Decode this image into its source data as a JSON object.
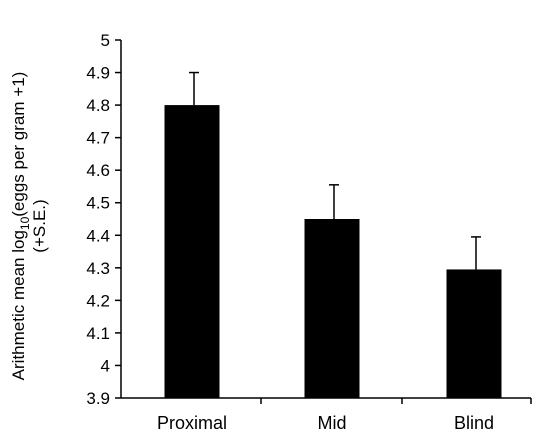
{
  "chart_data": {
    "type": "bar",
    "categories": [
      "Proximal",
      "Mid",
      "Blind"
    ],
    "values": [
      4.8,
      4.45,
      4.295
    ],
    "errors": [
      0.1,
      0.105,
      0.1
    ],
    "ylim": [
      3.9,
      5.0
    ],
    "yticks": [
      3.9,
      4.0,
      4.1,
      4.2,
      4.3,
      4.4,
      4.5,
      4.6,
      4.7,
      4.8,
      4.9,
      5.0
    ],
    "ytick_labels": [
      "3.9",
      "4",
      "4.1",
      "4.2",
      "4.3",
      "4.4",
      "4.5",
      "4.6",
      "4.7",
      "4.8",
      "4.9",
      "5"
    ],
    "ylabel": {
      "line1_prefix": "Arithmetic mean log",
      "line1_subscript": "10",
      "line1_suffix": "(eggs per gram +1)",
      "line2": "(+S.E.)"
    },
    "xlabel": "",
    "title": "",
    "bar_color": "#000000",
    "grid": false
  }
}
